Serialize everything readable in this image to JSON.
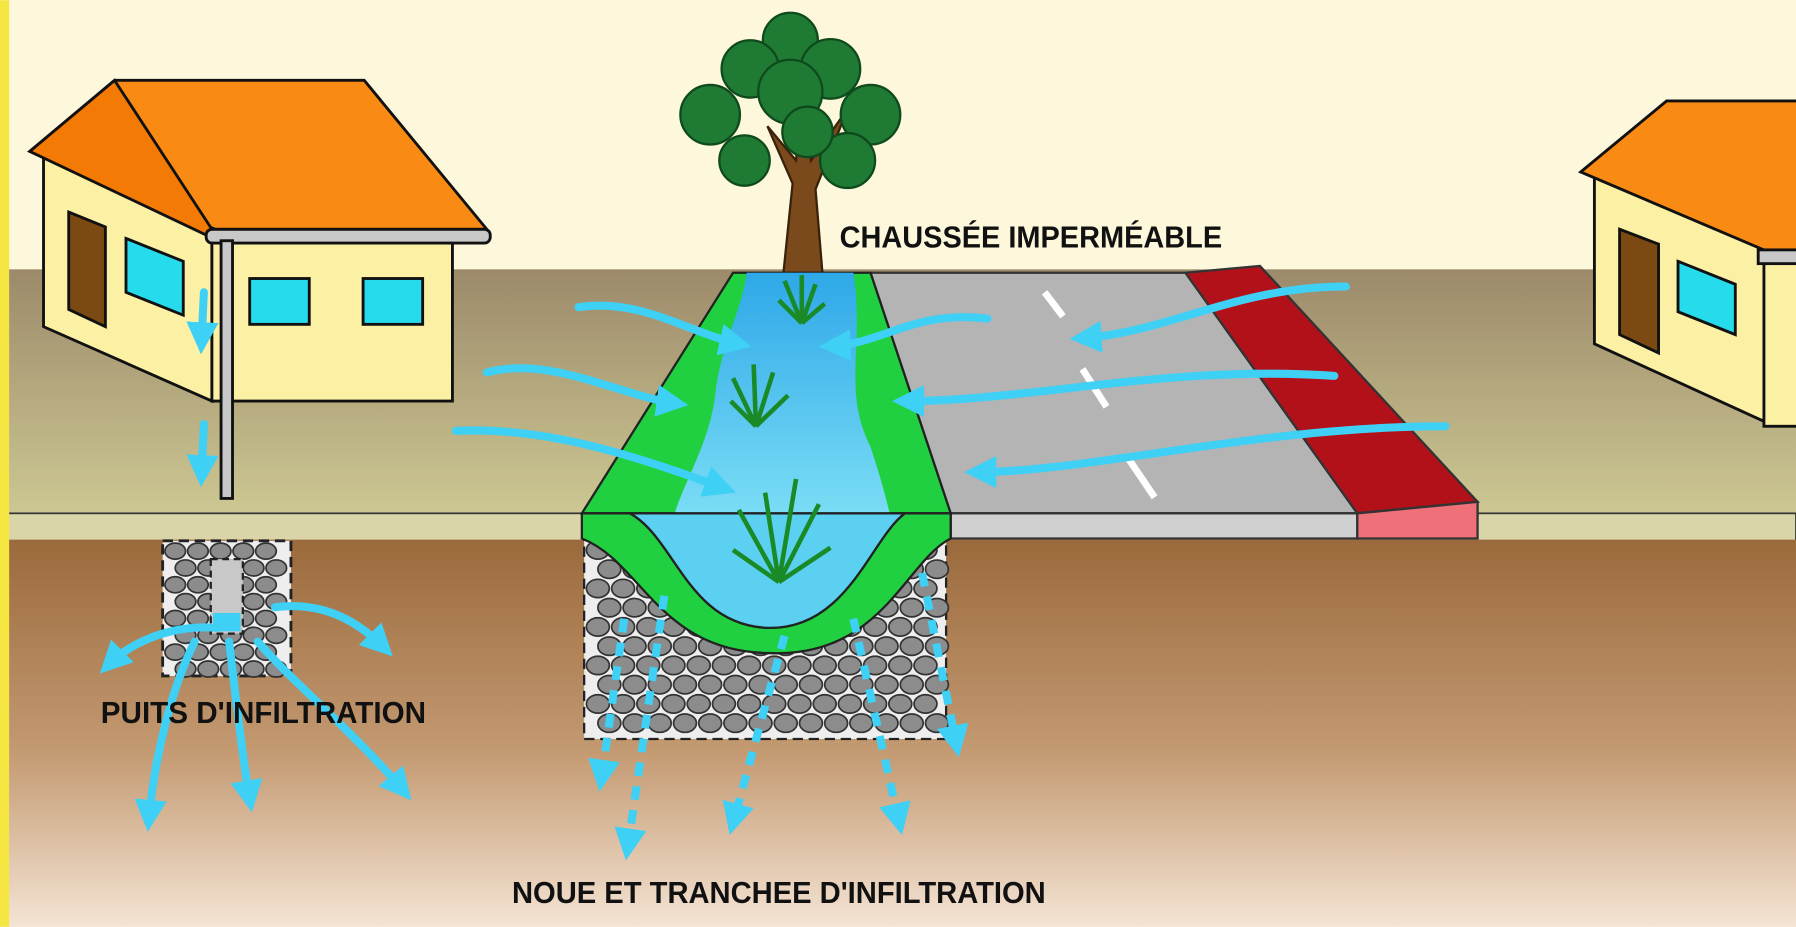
{
  "labels": {
    "road": "CHAUSSÉE IMPERMÉABLE",
    "well": "PUITS D'INFILTRATION",
    "swale": "NOUE ET TRANCHEE D'INFILTRATION"
  }
}
